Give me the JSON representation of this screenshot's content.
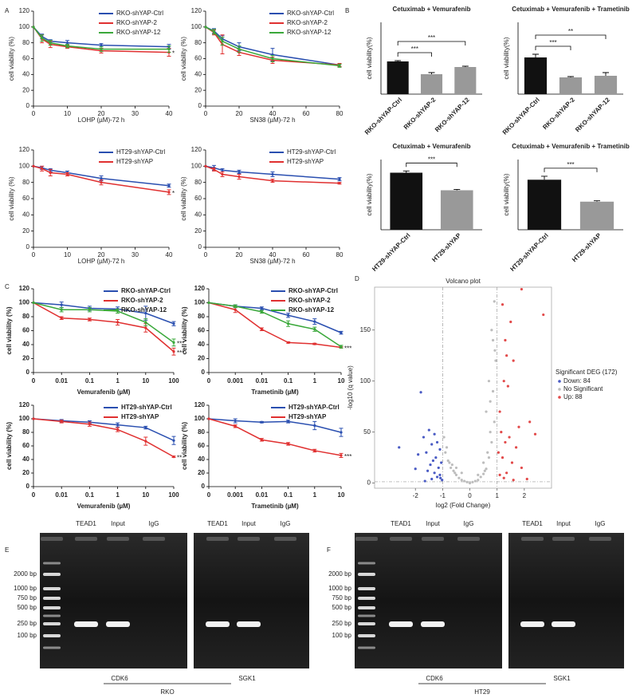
{
  "panel_labels": [
    "A",
    "B",
    "C",
    "D",
    "E",
    "F"
  ],
  "chart_data": [
    {
      "type": "line",
      "xlabel": "LOHP (µM)-72 h",
      "ylabel": "cell viability (%)",
      "x": [
        0,
        2.5,
        5,
        10,
        20,
        40
      ],
      "xlim": [
        0,
        40
      ],
      "xticks": [
        0,
        10,
        20,
        30,
        40
      ],
      "ylim": [
        0,
        120
      ],
      "yticks": [
        0,
        20,
        40,
        60,
        80,
        100,
        120
      ],
      "legend": "upper right",
      "annotations": [
        "*"
      ],
      "series": [
        {
          "name": "RKO-shYAP-Ctrl",
          "color": "#2a4fb0",
          "values": [
            100,
            88,
            82,
            80,
            77,
            75
          ],
          "errors": [
            0,
            3,
            2,
            3,
            2,
            3
          ]
        },
        {
          "name": "RKO-shYAP-2",
          "color": "#e03030",
          "values": [
            100,
            85,
            78,
            75,
            70,
            68
          ],
          "errors": [
            0,
            5,
            4,
            2,
            3,
            5
          ]
        },
        {
          "name": "RKO-shYAP-12",
          "color": "#3aa83a",
          "values": [
            100,
            86,
            80,
            76,
            72,
            72
          ],
          "errors": [
            0,
            4,
            3,
            2,
            3,
            4
          ]
        }
      ]
    },
    {
      "type": "line",
      "xlabel": "SN38 (µM)-72 h",
      "ylabel": "cell viability (%)",
      "x": [
        0,
        5,
        10,
        20,
        40,
        80
      ],
      "xlim": [
        0,
        80
      ],
      "xticks": [
        0,
        20,
        40,
        60,
        80
      ],
      "ylim": [
        0,
        120
      ],
      "yticks": [
        0,
        20,
        40,
        60,
        80,
        100,
        120
      ],
      "legend": "upper right",
      "series": [
        {
          "name": "RKO-shYAP-Ctrl",
          "color": "#2a4fb0",
          "values": [
            100,
            95,
            85,
            75,
            65,
            52
          ],
          "errors": [
            0,
            3,
            4,
            5,
            8,
            2
          ]
        },
        {
          "name": "RKO-shYAP-2",
          "color": "#e03030",
          "values": [
            100,
            93,
            78,
            68,
            58,
            52
          ],
          "errors": [
            0,
            3,
            12,
            4,
            4,
            2
          ]
        },
        {
          "name": "RKO-shYAP-12",
          "color": "#3aa83a",
          "values": [
            100,
            94,
            82,
            72,
            60,
            51
          ],
          "errors": [
            0,
            3,
            5,
            4,
            4,
            2
          ]
        }
      ]
    },
    {
      "type": "line",
      "xlabel": "LOHP (µM)-72 h",
      "ylabel": "cell viability (%)",
      "x": [
        0,
        2.5,
        5,
        10,
        20,
        40
      ],
      "xlim": [
        0,
        40
      ],
      "xticks": [
        0,
        10,
        20,
        30,
        40
      ],
      "ylim": [
        0,
        120
      ],
      "yticks": [
        0,
        20,
        40,
        60,
        80,
        100,
        120
      ],
      "legend": "upper right",
      "annotations": [
        "*"
      ],
      "series": [
        {
          "name": "HT29-shYAP-Ctrl",
          "color": "#2a4fb0",
          "values": [
            100,
            98,
            95,
            92,
            85,
            76
          ],
          "errors": [
            0,
            2,
            2,
            2,
            3,
            2
          ]
        },
        {
          "name": "HT29-shYAP",
          "color": "#e03030",
          "values": [
            100,
            97,
            92,
            90,
            80,
            68
          ],
          "errors": [
            0,
            3,
            4,
            2,
            3,
            3
          ]
        }
      ]
    },
    {
      "type": "line",
      "xlabel": "SN38 (µM)-72 h",
      "ylabel": "cell viability (%)",
      "x": [
        0,
        5,
        10,
        20,
        40,
        80
      ],
      "xlim": [
        0,
        80
      ],
      "xticks": [
        0,
        20,
        40,
        60,
        80
      ],
      "ylim": [
        0,
        120
      ],
      "yticks": [
        0,
        20,
        40,
        60,
        80,
        100,
        120
      ],
      "legend": "upper right",
      "series": [
        {
          "name": "HT29-shYAP-Ctrl",
          "color": "#2a4fb0",
          "values": [
            100,
            98,
            95,
            93,
            90,
            84
          ],
          "errors": [
            0,
            3,
            2,
            2,
            3,
            2
          ]
        },
        {
          "name": "HT29-shYAP",
          "color": "#e03030",
          "values": [
            100,
            96,
            90,
            87,
            82,
            79
          ],
          "errors": [
            0,
            2,
            3,
            3,
            2,
            1
          ]
        }
      ]
    },
    {
      "type": "bar",
      "title": "Cetuximab + Vemurafenib",
      "ylabel": "cell viability(%)",
      "categories": [
        "RKO-shYAP-Ctrl",
        "RKO-shYAP-2",
        "RKO-shYAP-12"
      ],
      "values": [
        41,
        25,
        34
      ],
      "errors": [
        1,
        2,
        1
      ],
      "colors": [
        "#111111",
        "#999999",
        "#999999"
      ],
      "ylim": [
        0,
        90
      ],
      "significance": [
        {
          "from": "RKO-shYAP-Ctrl",
          "to": "RKO-shYAP-2",
          "label": "***"
        },
        {
          "from": "RKO-shYAP-Ctrl",
          "to": "RKO-shYAP-12",
          "label": "***"
        }
      ]
    },
    {
      "type": "bar",
      "title": "Cetuximab + Vemurafenib + Trametinib",
      "ylabel": "cell viability(%)",
      "categories": [
        "RKO-shYAP-Ctrl",
        "RKO-shYAP-2",
        "RKO-shYAP-12"
      ],
      "values": [
        46,
        21,
        23
      ],
      "errors": [
        4,
        1,
        4
      ],
      "colors": [
        "#111111",
        "#999999",
        "#999999"
      ],
      "ylim": [
        0,
        90
      ],
      "significance": [
        {
          "from": "RKO-shYAP-Ctrl",
          "to": "RKO-shYAP-2",
          "label": "***"
        },
        {
          "from": "RKO-shYAP-Ctrl",
          "to": "RKO-shYAP-12",
          "label": "**"
        }
      ]
    },
    {
      "type": "bar",
      "title": "Cetuximab + Vemurafenib",
      "ylabel": "cell viability(%)",
      "categories": [
        "HT29-shYAP-Ctrl",
        "HT29-shYAP"
      ],
      "values": [
        65,
        45
      ],
      "errors": [
        2,
        1
      ],
      "colors": [
        "#111111",
        "#999999"
      ],
      "ylim": [
        0,
        80
      ],
      "significance": [
        {
          "from": "HT29-shYAP-Ctrl",
          "to": "HT29-shYAP",
          "label": "***"
        }
      ]
    },
    {
      "type": "bar",
      "title": "Cetuximab + Vemurafenib + Trametinib",
      "ylabel": "cell viability(%)",
      "categories": [
        "HT29-shYAP-Ctrl",
        "HT29-shYAP"
      ],
      "values": [
        57,
        32
      ],
      "errors": [
        4,
        1
      ],
      "colors": [
        "#111111",
        "#999999"
      ],
      "ylim": [
        0,
        80
      ],
      "significance": [
        {
          "from": "HT29-shYAP-Ctrl",
          "to": "HT29-shYAP",
          "label": "***"
        }
      ]
    },
    {
      "type": "line",
      "xlabel": "Vemurafenib (µM)",
      "ylabel": "cell viability (%)",
      "categories": [
        "0",
        "0.01",
        "0.1",
        "1",
        "10",
        "100"
      ],
      "ylim": [
        0,
        120
      ],
      "yticks": [
        0,
        20,
        40,
        60,
        80,
        100,
        120
      ],
      "legend": "upper right",
      "annotations": [
        "***",
        "***"
      ],
      "series": [
        {
          "name": "RKO-shYAP-Ctrl",
          "color": "#2a4fb0",
          "values": [
            100,
            97,
            92,
            91,
            85,
            70
          ],
          "errors": [
            0,
            4,
            3,
            3,
            10,
            3
          ]
        },
        {
          "name": "RKO-shYAP-2",
          "color": "#e03030",
          "values": [
            100,
            78,
            76,
            72,
            64,
            30
          ],
          "errors": [
            0,
            2,
            2,
            4,
            6,
            5
          ]
        },
        {
          "name": "RKO-shYAP-12",
          "color": "#3aa83a",
          "values": [
            100,
            90,
            90,
            88,
            72,
            43
          ],
          "errors": [
            0,
            3,
            3,
            3,
            5,
            5
          ]
        }
      ]
    },
    {
      "type": "line",
      "xlabel": "Trametinib (µM)",
      "ylabel": "cell viability (%)",
      "categories": [
        "0",
        "0.001",
        "0.01",
        "0.1",
        "1",
        "10"
      ],
      "ylim": [
        0,
        120
      ],
      "yticks": [
        0,
        20,
        40,
        60,
        80,
        100,
        120
      ],
      "legend": "upper right",
      "annotations": [
        "***"
      ],
      "series": [
        {
          "name": "RKO-shYAP-Ctrl",
          "color": "#2a4fb0",
          "values": [
            100,
            95,
            92,
            82,
            73,
            57
          ],
          "errors": [
            0,
            2,
            2,
            3,
            4,
            2
          ]
        },
        {
          "name": "RKO-shYAP-2",
          "color": "#e03030",
          "values": [
            100,
            90,
            62,
            43,
            41,
            36
          ],
          "errors": [
            0,
            4,
            2,
            1,
            1,
            1
          ]
        },
        {
          "name": "RKO-shYAP-12",
          "color": "#3aa83a",
          "values": [
            100,
            95,
            87,
            70,
            62,
            37
          ],
          "errors": [
            0,
            2,
            2,
            4,
            3,
            2
          ]
        }
      ]
    },
    {
      "type": "line",
      "xlabel": "Vemurafenib (µM)",
      "ylabel": "cell viability (%)",
      "categories": [
        "0",
        "0.01",
        "0.1",
        "1",
        "10",
        "100"
      ],
      "ylim": [
        0,
        120
      ],
      "yticks": [
        0,
        20,
        40,
        60,
        80,
        100,
        120
      ],
      "legend": "upper right",
      "annotations": [
        "**"
      ],
      "series": [
        {
          "name": "HT29-shYAP-Ctrl",
          "color": "#2a4fb0",
          "values": [
            100,
            97,
            95,
            91,
            87,
            68
          ],
          "errors": [
            0,
            2,
            2,
            3,
            2,
            6
          ]
        },
        {
          "name": "HT29-shYAP",
          "color": "#e03030",
          "values": [
            100,
            96,
            92,
            84,
            67,
            44
          ],
          "errors": [
            0,
            2,
            3,
            3,
            6,
            1
          ]
        }
      ]
    },
    {
      "type": "line",
      "xlabel": "Trametinib (µM)",
      "ylabel": "cell viability (%)",
      "categories": [
        "0",
        "0.001",
        "0.01",
        "0.1",
        "1",
        "10"
      ],
      "ylim": [
        0,
        120
      ],
      "yticks": [
        0,
        20,
        40,
        60,
        80,
        100,
        120
      ],
      "legend": "upper right",
      "annotations": [
        "***"
      ],
      "series": [
        {
          "name": "HT29-shYAP-Ctrl",
          "color": "#2a4fb0",
          "values": [
            100,
            97,
            95,
            96,
            90,
            80
          ],
          "errors": [
            0,
            3,
            1,
            2,
            6,
            6
          ]
        },
        {
          "name": "HT29-shYAP",
          "color": "#e03030",
          "values": [
            100,
            89,
            69,
            63,
            53,
            46
          ],
          "errors": [
            0,
            2,
            2,
            2,
            2,
            3
          ]
        }
      ]
    },
    {
      "type": "scatter",
      "title": "Volcano plot",
      "xlabel": "log2 (Fold Change)",
      "ylabel": "-log10 (q value)",
      "xlim": [
        -3.5,
        3
      ],
      "ylim": [
        -5,
        192
      ],
      "xticks": [
        -2,
        -1,
        0,
        1,
        2
      ],
      "yticks": [
        0,
        50,
        100,
        150
      ],
      "vlines": [
        -1,
        1
      ],
      "hline": 1.3,
      "legend_title": "Significant DEG (172)",
      "series": [
        {
          "name": "Down: 84",
          "color": "#4a5bc4",
          "x": [
            -1.8,
            -2.6,
            -1.5,
            -1.3,
            -1.7,
            -1.2,
            -1.4,
            -1.1,
            -1.6,
            -1.9,
            -1.25,
            -1.35,
            -1.05,
            -1.45,
            -1.15,
            -2.0,
            -1.55,
            -1.3,
            -1.1,
            -1.2,
            -1.4,
            -1.02,
            -1.65,
            -1.08
          ],
          "values": [
            89,
            35,
            52,
            48,
            45,
            40,
            38,
            33,
            30,
            28,
            25,
            22,
            20,
            18,
            15,
            14,
            12,
            10,
            8,
            6,
            4,
            3,
            2,
            5
          ]
        },
        {
          "name": "No Significant",
          "color": "#bdbdbd",
          "x": [
            -0.9,
            -0.8,
            -0.7,
            -0.6,
            -0.5,
            -0.4,
            -0.3,
            -0.2,
            -0.1,
            0,
            0.1,
            0.2,
            0.3,
            0.4,
            0.5,
            0.6,
            0.7,
            0.8,
            0.9,
            -0.95,
            -0.85,
            -0.75,
            -0.65,
            -0.55,
            0.55,
            0.65,
            0.75,
            0.85,
            0.95,
            0.8,
            0.9,
            0.7,
            0.6,
            -0.3,
            0.3,
            -0.5,
            0.5,
            0.85,
            0.92,
            0.75
          ],
          "values": [
            30,
            22,
            15,
            12,
            8,
            5,
            3,
            2,
            1,
            0,
            1,
            2,
            3,
            6,
            9,
            14,
            25,
            40,
            60,
            45,
            35,
            20,
            18,
            10,
            12,
            30,
            50,
            90,
            120,
            150,
            178,
            100,
            70,
            10,
            8,
            15,
            20,
            140,
            130,
            80
          ]
        },
        {
          "name": "Up: 88",
          "color": "#e24a4a",
          "x": [
            1.9,
            2.7,
            1.2,
            1.5,
            1.3,
            1.35,
            1.6,
            1.25,
            1.4,
            2.2,
            1.8,
            1.1,
            1.15,
            1.45,
            1.3,
            1.7,
            2.4,
            1.05,
            1.2,
            1.55,
            1.9,
            1.35,
            1.1,
            1.25,
            1.6,
            2.1
          ],
          "values": [
            190,
            165,
            175,
            158,
            140,
            125,
            120,
            100,
            95,
            60,
            55,
            70,
            50,
            45,
            40,
            35,
            48,
            30,
            25,
            20,
            15,
            10,
            8,
            5,
            3,
            4
          ]
        }
      ]
    }
  ],
  "gels": [
    {
      "cell_line": "RKO",
      "ladder": [
        "2000 bp",
        "1000 bp",
        "750 bp",
        "500 bp",
        "250 bp",
        "100 bp"
      ],
      "blots": [
        {
          "gene": "CDK6",
          "lanes": [
            "TEAD1",
            "Input",
            "IgG"
          ]
        },
        {
          "gene": "SGK1",
          "lanes": [
            "TEAD1",
            "Input",
            "IgG"
          ]
        }
      ]
    },
    {
      "cell_line": "HT29",
      "ladder": [
        "2000 bp",
        "1000 bp",
        "750 bp",
        "500 bp",
        "250 bp",
        "100 bp"
      ],
      "blots": [
        {
          "gene": "CDK6",
          "lanes": [
            "TEAD1",
            "Input",
            "IgG"
          ]
        },
        {
          "gene": "SGK1",
          "lanes": [
            "TEAD1",
            "Input",
            "IgG"
          ]
        }
      ]
    }
  ]
}
